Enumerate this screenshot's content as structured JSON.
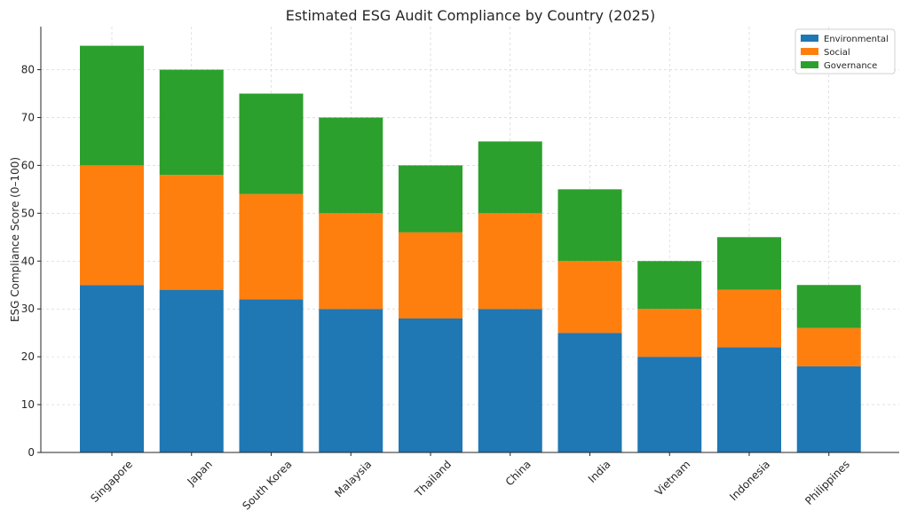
{
  "chart_data": {
    "type": "bar",
    "stacked": true,
    "title": "Estimated ESG Audit Compliance by Country (2025)",
    "xlabel": "",
    "ylabel": "ESG Compliance Score (0–100)",
    "ylim": [
      0,
      89
    ],
    "yticks": [
      "0",
      "10",
      "20",
      "30",
      "40",
      "50",
      "60",
      "70",
      "80"
    ],
    "grid": true,
    "legend_position": "top-right",
    "categories": [
      "Singapore",
      "Japan",
      "South Korea",
      "Malaysia",
      "Thailand",
      "China",
      "India",
      "Vietnam",
      "Indonesia",
      "Philippines"
    ],
    "series": [
      {
        "name": "Environmental",
        "color": "#1f77b4",
        "values": [
          35,
          34,
          32,
          30,
          28,
          30,
          25,
          20,
          22,
          18
        ]
      },
      {
        "name": "Social",
        "color": "#ff7f0e",
        "values": [
          25,
          24,
          22,
          20,
          18,
          20,
          15,
          10,
          12,
          8
        ]
      },
      {
        "name": "Governance",
        "color": "#2ca02c",
        "values": [
          25,
          22,
          21,
          20,
          14,
          15,
          15,
          10,
          11,
          9
        ]
      }
    ]
  }
}
